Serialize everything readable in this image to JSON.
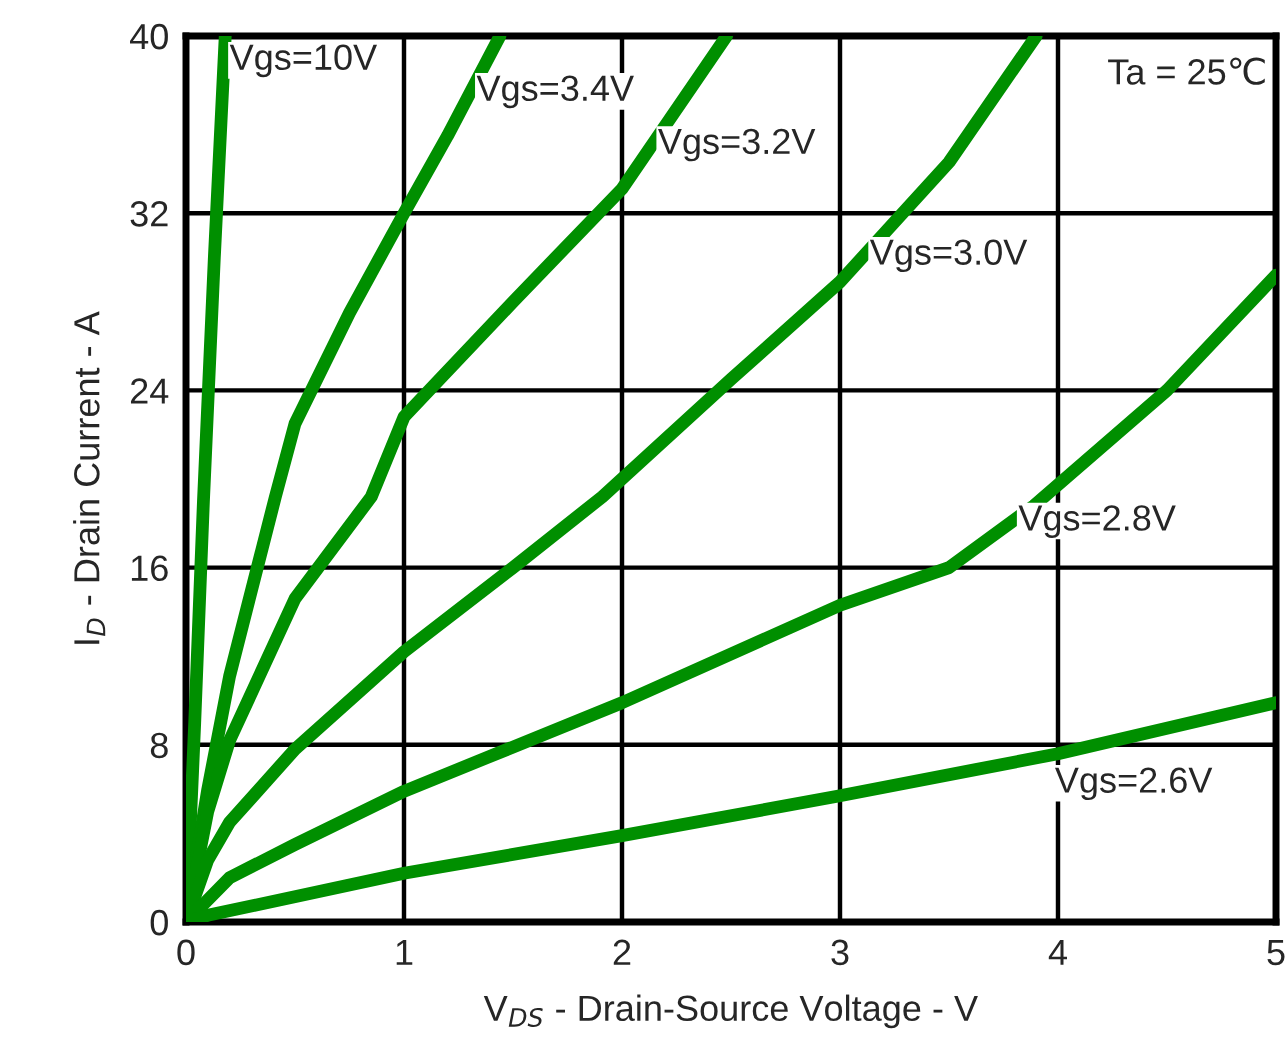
{
  "chart_data": {
    "type": "line",
    "xlabel": "V$_{DS}$ - Drain-Source Voltage - V",
    "ylabel": "I$_{D}$ - Drain Current - A",
    "xlim": [
      0,
      5
    ],
    "xticks": [
      0,
      1,
      2,
      3,
      4,
      5
    ],
    "ylim": [
      0,
      40
    ],
    "yticks": [
      0,
      8,
      16,
      24,
      32,
      40
    ],
    "grid": true,
    "line_style": "solid",
    "marker": "none",
    "series": [
      {
        "color": "#008f00",
        "x": [
          0,
          0.04,
          0.08,
          0.13,
          0.18
        ],
        "values": [
          0,
          9,
          19,
          30,
          40
        ]
      },
      {
        "color": "#008f00",
        "x": [
          0,
          0.1,
          0.2,
          0.41,
          0.5,
          0.75,
          1.0,
          1.2,
          1.44
        ],
        "values": [
          0,
          6,
          11.1,
          19.2,
          22.5,
          27.5,
          32,
          35.5,
          40
        ]
      },
      {
        "color": "#008f00",
        "x": [
          0,
          0.1,
          0.2,
          0.5,
          0.85,
          1.0,
          1.5,
          2.0,
          2.48
        ],
        "values": [
          0,
          5,
          8.2,
          14.6,
          19.2,
          22.8,
          28,
          33.1,
          40
        ]
      },
      {
        "color": "#008f00",
        "x": [
          0,
          0.1,
          0.2,
          0.5,
          1.0,
          1.5,
          1.91,
          2.5,
          3.0,
          3.5,
          3.9
        ],
        "values": [
          0,
          2.8,
          4.5,
          7.8,
          12.2,
          16,
          19.2,
          24.5,
          28.9,
          34.3,
          40
        ]
      },
      {
        "color": "#008f00",
        "x": [
          0,
          0.2,
          0.5,
          1.0,
          2.0,
          3.0,
          3.5,
          3.89,
          4.5,
          5.0
        ],
        "values": [
          0,
          2,
          3.5,
          5.9,
          9.9,
          14.3,
          16,
          18.8,
          24,
          29.2
        ]
      },
      {
        "color": "#008f00",
        "x": [
          0,
          0.1,
          1.0,
          2.0,
          3.0,
          4.0,
          5.0
        ],
        "values": [
          0,
          0.3,
          2.2,
          3.9,
          5.7,
          7.6,
          9.9
        ]
      }
    ],
    "annotations": [
      {
        "text": "Vgs=10V",
        "x": 0.1745,
        "y": 38.9
      },
      {
        "text": "Vgs=3.4V",
        "x": 1.307,
        "y": 37.5
      },
      {
        "text": "Vgs=3.2V",
        "x": 2.139,
        "y": 35.1
      },
      {
        "text": "Vgs=3.0V",
        "x": 3.111,
        "y": 30.1
      },
      {
        "text": "Vgs=2.8V",
        "x": 3.7925,
        "y": 18.1
      },
      {
        "text": "Vgs=2.6V",
        "x": 3.96,
        "y": 7.524
      },
      "Ta = 25℃"
    ]
  }
}
